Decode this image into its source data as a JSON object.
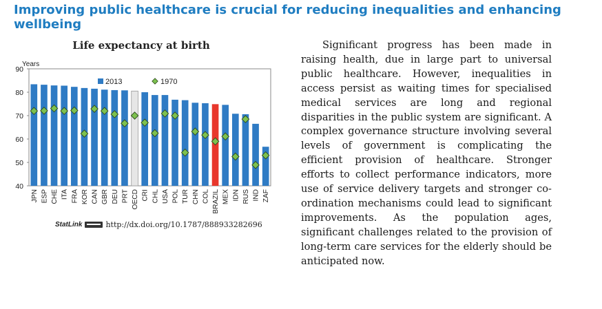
{
  "headline": "Improving public healthcare is crucial for reducing inequalities and enhancing wellbeing",
  "paragraph": "Significant progress has been made in raising health, due in large part to universal public healthcare. However, inequalities in access persist as waiting times for specialised medical services are long and regional disparities in the public system are significant. A complex governance structure involving several levels of government is complicating the efficient provision of healthcare. Stronger efforts to collect performance indicators, more use of service delivery targets and stronger co-ordination mechanisms could lead to significant improvements. As the population ages, significant challenges related to the provision of long-term care services for the elderly should be anticipated now.",
  "statlink": {
    "brand": "StatLink",
    "url": "http://dx.doi.org/10.1787/888933282696"
  },
  "colors": {
    "headline": "#1f7dc1",
    "bar_2013": "#2f7bc4",
    "bar_oecd": "#e6e6e6",
    "bar_brazil": "#e8372c",
    "marker_1970": "#7dc14f"
  },
  "chart_data": {
    "type": "bar",
    "title": "Life expectancy at birth",
    "ylabel": "Years",
    "ylim": [
      40,
      90
    ],
    "yticks": [
      40,
      50,
      60,
      70,
      80,
      90
    ],
    "grid": false,
    "legend_position": "top",
    "categories": [
      "JPN",
      "ESP",
      "CHE",
      "ITA",
      "FRA",
      "KOR",
      "CAN",
      "GBR",
      "DEU",
      "PRT",
      "OECD",
      "CRI",
      "CHL",
      "USA",
      "POL",
      "TUR",
      "CHN",
      "COL",
      "BRAZIL",
      "MEX",
      "IDN",
      "RUS",
      "IND",
      "ZAF"
    ],
    "highlight": {
      "OECD": "bar_oecd",
      "BRAZIL": "bar_brazil"
    },
    "series": [
      {
        "name": "2013",
        "type": "bar",
        "values": [
          83.4,
          83.2,
          82.9,
          82.8,
          82.3,
          81.8,
          81.5,
          81.1,
          80.9,
          80.8,
          80.5,
          80.0,
          78.8,
          78.8,
          76.8,
          76.6,
          75.5,
          75.3,
          74.9,
          74.6,
          70.8,
          70.6,
          66.5,
          56.7
        ]
      },
      {
        "name": "1970",
        "type": "scatter",
        "values": [
          72.0,
          72.1,
          73.1,
          72.0,
          72.2,
          62.3,
          72.9,
          72.0,
          70.6,
          66.7,
          70.0,
          67.0,
          62.5,
          70.9,
          70.0,
          54.2,
          63.2,
          61.7,
          59.0,
          61.1,
          52.5,
          68.5,
          48.9,
          53.0
        ]
      }
    ]
  }
}
